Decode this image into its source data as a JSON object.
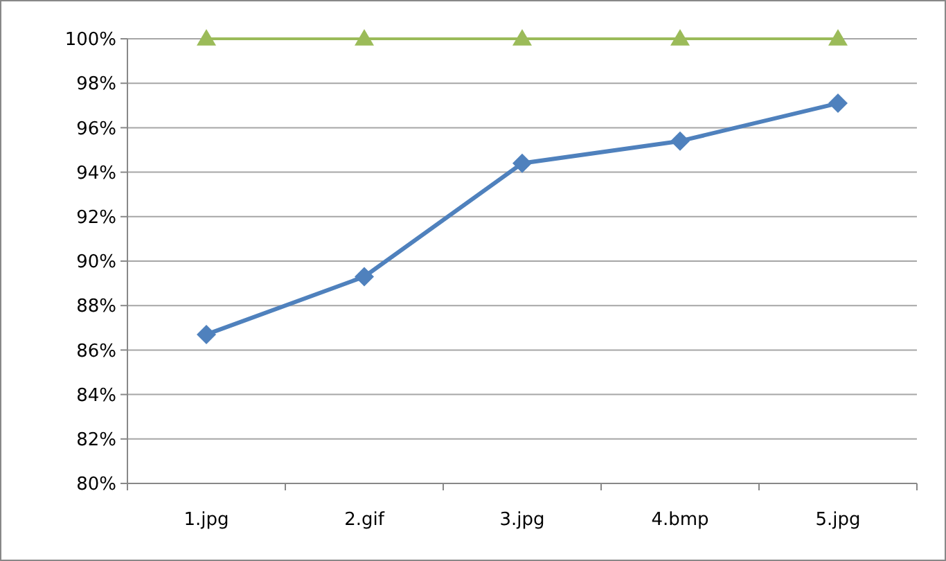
{
  "chart_data": {
    "type": "line",
    "categories": [
      "1.jpg",
      "2.gif",
      "3.jpg",
      "4.bmp",
      "5.jpg"
    ],
    "series": [
      {
        "color": "#9bbb59",
        "values": [
          100,
          100,
          100,
          100,
          100
        ],
        "marker": "triangle"
      },
      {
        "color": "#4f81bd",
        "values": [
          86.7,
          89.3,
          94.4,
          95.4,
          97.1
        ],
        "marker": "diamond"
      }
    ],
    "ylim": [
      80,
      100
    ],
    "yticks": [
      {
        "value": 80,
        "label": "80%"
      },
      {
        "value": 82,
        "label": "82%"
      },
      {
        "value": 84,
        "label": "84%"
      },
      {
        "value": 86,
        "label": "86%"
      },
      {
        "value": 88,
        "label": "88%"
      },
      {
        "value": 90,
        "label": "90%"
      },
      {
        "value": 92,
        "label": "92%"
      },
      {
        "value": 94,
        "label": "94%"
      },
      {
        "value": 96,
        "label": "96%"
      },
      {
        "value": 98,
        "label": "98%"
      },
      {
        "value": 100,
        "label": "100%"
      }
    ],
    "grid": "y",
    "line_style": "solid"
  }
}
